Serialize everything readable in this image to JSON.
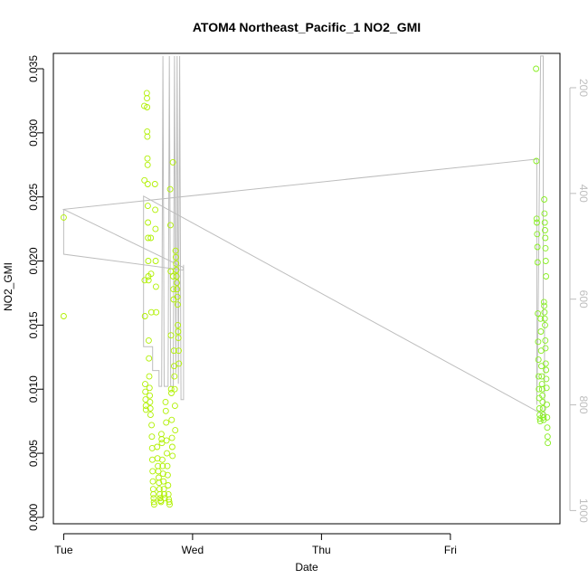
{
  "chart_data": {
    "type": "scatter",
    "title": "ATOM4 Northeast_Pacific_1 NO2_GMI",
    "xlabel": "Date",
    "ylabel": "NO2_GMI",
    "x_ticks": [
      "Tue",
      "Wed",
      "Thu",
      "Fri"
    ],
    "y_ticks": [
      "0.000",
      "0.005",
      "0.010",
      "0.015",
      "0.020",
      "0.025",
      "0.030",
      "0.035"
    ],
    "y2_ticks": [
      "200",
      "400",
      "600",
      "800",
      "1000"
    ],
    "xlim_days": [
      -0.08,
      3.85
    ],
    "ylim": [
      -0.0005,
      0.0362
    ],
    "y2lim": [
      1025,
      135
    ],
    "grid": false,
    "colors": {
      "points": "#b0f000",
      "points_late": "#88ee22",
      "pressure_line": "#bdbdbd",
      "axis": "#000000",
      "right_axis": "#bdbdbd"
    },
    "series": [
      {
        "marker": "open-circle",
        "axis": "left",
        "points": [
          [
            0.0,
            0.0234
          ],
          [
            0.0,
            0.0157
          ],
          [
            0.625,
            0.0321
          ],
          [
            0.627,
            0.0263
          ],
          [
            0.628,
            0.0185
          ],
          [
            0.63,
            0.0157
          ],
          [
            0.632,
            0.0104
          ],
          [
            0.634,
            0.0098
          ],
          [
            0.635,
            0.0092
          ],
          [
            0.637,
            0.0087
          ],
          [
            0.638,
            0.0084
          ],
          [
            0.645,
            0.0331
          ],
          [
            0.646,
            0.0327
          ],
          [
            0.647,
            0.032
          ],
          [
            0.648,
            0.0301
          ],
          [
            0.649,
            0.0297
          ],
          [
            0.65,
            0.028
          ],
          [
            0.651,
            0.0275
          ],
          [
            0.652,
            0.026
          ],
          [
            0.653,
            0.0243
          ],
          [
            0.654,
            0.023
          ],
          [
            0.655,
            0.0218
          ],
          [
            0.656,
            0.02
          ],
          [
            0.657,
            0.0188
          ],
          [
            0.658,
            0.0185
          ],
          [
            0.66,
            0.0138
          ],
          [
            0.662,
            0.0124
          ],
          [
            0.664,
            0.011
          ],
          [
            0.666,
            0.0101
          ],
          [
            0.668,
            0.0095
          ],
          [
            0.67,
            0.009
          ],
          [
            0.672,
            0.0085
          ],
          [
            0.674,
            0.008
          ],
          [
            0.676,
            0.0218
          ],
          [
            0.678,
            0.019
          ],
          [
            0.68,
            0.016
          ],
          [
            0.682,
            0.0072
          ],
          [
            0.684,
            0.0063
          ],
          [
            0.686,
            0.0054
          ],
          [
            0.688,
            0.0045
          ],
          [
            0.69,
            0.0036
          ],
          [
            0.692,
            0.0028
          ],
          [
            0.694,
            0.0022
          ],
          [
            0.696,
            0.0018
          ],
          [
            0.698,
            0.0015
          ],
          [
            0.7,
            0.0012
          ],
          [
            0.702,
            0.001
          ],
          [
            0.708,
            0.026
          ],
          [
            0.71,
            0.024
          ],
          [
            0.712,
            0.0225
          ],
          [
            0.714,
            0.02
          ],
          [
            0.716,
            0.018
          ],
          [
            0.718,
            0.016
          ],
          [
            0.725,
            0.0055
          ],
          [
            0.728,
            0.0046
          ],
          [
            0.731,
            0.004
          ],
          [
            0.734,
            0.0036
          ],
          [
            0.737,
            0.0031
          ],
          [
            0.74,
            0.0027
          ],
          [
            0.743,
            0.0022
          ],
          [
            0.746,
            0.0018
          ],
          [
            0.749,
            0.0015
          ],
          [
            0.752,
            0.0013
          ],
          [
            0.755,
            0.0012
          ],
          [
            0.758,
            0.0065
          ],
          [
            0.76,
            0.0061
          ],
          [
            0.762,
            0.0058
          ],
          [
            0.765,
            0.0045
          ],
          [
            0.768,
            0.004
          ],
          [
            0.771,
            0.0034
          ],
          [
            0.774,
            0.0028
          ],
          [
            0.777,
            0.0022
          ],
          [
            0.78,
            0.0018
          ],
          [
            0.783,
            0.0015
          ],
          [
            0.79,
            0.009
          ],
          [
            0.792,
            0.0083
          ],
          [
            0.795,
            0.0074
          ],
          [
            0.798,
            0.006
          ],
          [
            0.801,
            0.005
          ],
          [
            0.804,
            0.004
          ],
          [
            0.807,
            0.0033
          ],
          [
            0.81,
            0.0025
          ],
          [
            0.813,
            0.0018
          ],
          [
            0.816,
            0.0014
          ],
          [
            0.819,
            0.0012
          ],
          [
            0.822,
            0.001
          ],
          [
            0.826,
            0.0256
          ],
          [
            0.828,
            0.0228
          ],
          [
            0.83,
            0.0192
          ],
          [
            0.832,
            0.0142
          ],
          [
            0.834,
            0.01
          ],
          [
            0.836,
            0.0097
          ],
          [
            0.838,
            0.0076
          ],
          [
            0.84,
            0.0062
          ],
          [
            0.842,
            0.0055
          ],
          [
            0.844,
            0.0048
          ],
          [
            0.847,
            0.0277
          ],
          [
            0.849,
            0.0188
          ],
          [
            0.851,
            0.0178
          ],
          [
            0.853,
            0.017
          ],
          [
            0.855,
            0.013
          ],
          [
            0.857,
            0.0118
          ],
          [
            0.859,
            0.011
          ],
          [
            0.861,
            0.01
          ],
          [
            0.863,
            0.0087
          ],
          [
            0.865,
            0.0068
          ],
          [
            0.868,
            0.0208
          ],
          [
            0.87,
            0.0203
          ],
          [
            0.872,
            0.0198
          ],
          [
            0.874,
            0.0193
          ],
          [
            0.876,
            0.0188
          ],
          [
            0.878,
            0.0183
          ],
          [
            0.88,
            0.0178
          ],
          [
            0.882,
            0.0172
          ],
          [
            0.884,
            0.0166
          ],
          [
            0.886,
            0.015
          ],
          [
            0.888,
            0.0145
          ],
          [
            0.89,
            0.014
          ],
          [
            0.892,
            0.013
          ],
          [
            0.894,
            0.012
          ]
        ]
      },
      {
        "marker": "open-circle",
        "axis": "left",
        "points": [
          [
            3.665,
            0.035
          ],
          [
            3.667,
            0.0278
          ],
          [
            3.669,
            0.0233
          ],
          [
            3.671,
            0.023
          ],
          [
            3.673,
            0.0221
          ],
          [
            3.675,
            0.0211
          ],
          [
            3.677,
            0.0199
          ],
          [
            3.679,
            0.0159
          ],
          [
            3.681,
            0.0137
          ],
          [
            3.683,
            0.0123
          ],
          [
            3.685,
            0.011
          ],
          [
            3.687,
            0.01
          ],
          [
            3.689,
            0.0093
          ],
          [
            3.691,
            0.0085
          ],
          [
            3.693,
            0.008
          ],
          [
            3.695,
            0.0077
          ],
          [
            3.697,
            0.0075
          ],
          [
            3.7,
            0.0155
          ],
          [
            3.702,
            0.0145
          ],
          [
            3.704,
            0.013
          ],
          [
            3.706,
            0.0118
          ],
          [
            3.708,
            0.011
          ],
          [
            3.71,
            0.0104
          ],
          [
            3.712,
            0.01
          ],
          [
            3.714,
            0.0095
          ],
          [
            3.716,
            0.009
          ],
          [
            3.718,
            0.0085
          ],
          [
            3.72,
            0.008
          ],
          [
            3.722,
            0.0078
          ],
          [
            3.724,
            0.0076
          ],
          [
            3.726,
            0.0168
          ],
          [
            3.728,
            0.0165
          ],
          [
            3.73,
            0.016
          ],
          [
            3.732,
            0.0155
          ],
          [
            3.734,
            0.015
          ],
          [
            3.736,
            0.0138
          ],
          [
            3.738,
            0.0132
          ],
          [
            3.74,
            0.012
          ],
          [
            3.742,
            0.0115
          ],
          [
            3.744,
            0.0108
          ],
          [
            3.746,
            0.0101
          ],
          [
            3.748,
            0.0088
          ],
          [
            3.75,
            0.0078
          ],
          [
            3.752,
            0.007
          ],
          [
            3.754,
            0.0063
          ],
          [
            3.756,
            0.0058
          ],
          [
            3.728,
            0.0248
          ],
          [
            3.73,
            0.0237
          ],
          [
            3.732,
            0.023
          ],
          [
            3.734,
            0.0224
          ],
          [
            3.736,
            0.0218
          ],
          [
            3.738,
            0.021
          ],
          [
            3.74,
            0.02
          ],
          [
            3.742,
            0.0188
          ]
        ]
      }
    ],
    "pressure_line": {
      "axis": "right",
      "points": [
        [
          0.0,
          430
        ],
        [
          0.0,
          515
        ],
        [
          0.928,
          545
        ],
        [
          0.928,
          540
        ],
        [
          0.0,
          430
        ],
        [
          3.67,
          335
        ],
        [
          3.67,
          800
        ],
        [
          3.68,
          640
        ],
        [
          3.7,
          140
        ],
        [
          3.72,
          140
        ],
        [
          3.72,
          640
        ],
        [
          3.73,
          640
        ],
        [
          3.73,
          820
        ],
        [
          0.62,
          405
        ],
        [
          0.62,
          690
        ],
        [
          0.69,
          690
        ],
        [
          0.69,
          735
        ],
        [
          0.74,
          735
        ],
        [
          0.74,
          765
        ],
        [
          0.76,
          765
        ],
        [
          0.77,
          140
        ],
        [
          0.78,
          765
        ],
        [
          0.81,
          765
        ],
        [
          0.82,
          140
        ],
        [
          0.83,
          765
        ],
        [
          0.85,
          765
        ],
        [
          0.86,
          140
        ],
        [
          0.87,
          740
        ],
        [
          0.88,
          140
        ],
        [
          0.89,
          760
        ],
        [
          0.9,
          140
        ],
        [
          0.91,
          790
        ],
        [
          0.93,
          790
        ],
        [
          0.93,
          535
        ]
      ]
    }
  }
}
